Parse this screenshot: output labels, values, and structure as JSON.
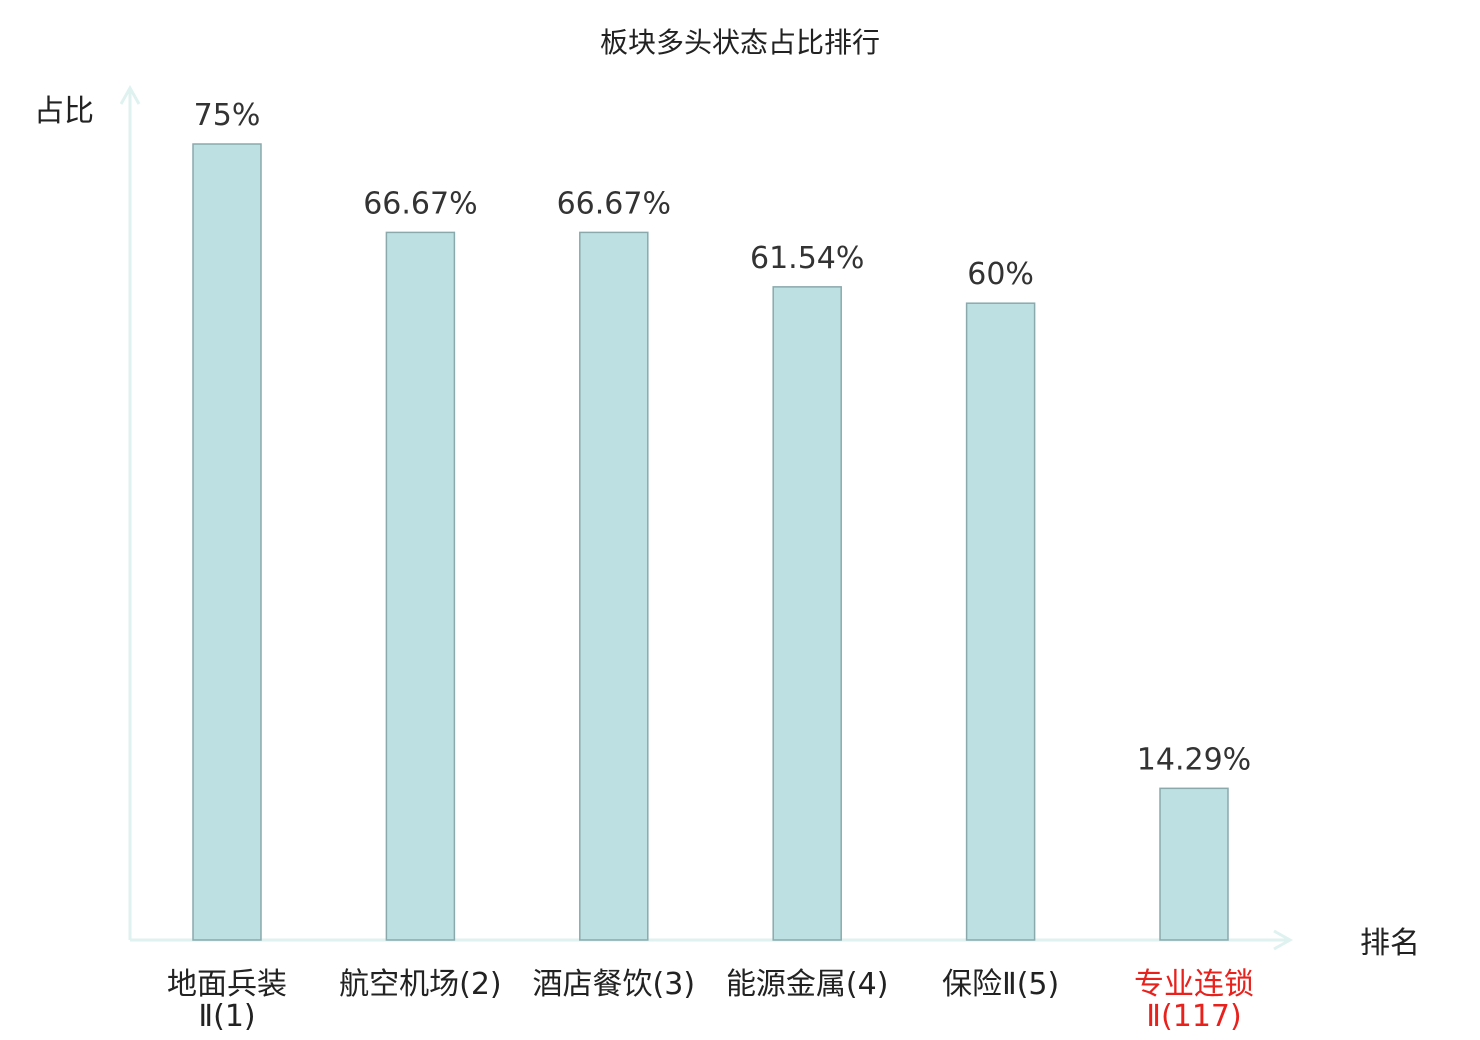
{
  "chart_data": {
    "type": "bar",
    "title": "板块多头状态占比排行",
    "ylabel": "占比",
    "xlabel": "排名",
    "ylim": [
      0,
      80
    ],
    "grid": false,
    "unit": "%",
    "categories": [
      {
        "line1": "地面兵装",
        "line2": "Ⅱ(1)",
        "highlight": false
      },
      {
        "line1": "航空机场(2)",
        "line2": "",
        "highlight": false
      },
      {
        "line1": "酒店餐饮(3)",
        "line2": "",
        "highlight": false
      },
      {
        "line1": "能源金属(4)",
        "line2": "",
        "highlight": false
      },
      {
        "line1": "保险Ⅱ(5)",
        "line2": "",
        "highlight": false
      },
      {
        "line1": "专业连锁",
        "line2": "Ⅱ(117)",
        "highlight": true
      }
    ],
    "values": [
      75,
      66.67,
      66.67,
      61.54,
      60,
      14.29
    ],
    "value_labels": [
      "75%",
      "66.67%",
      "66.67%",
      "61.54%",
      "60%",
      "14.29%"
    ]
  },
  "colors": {
    "bar_fill": "#bde0e3",
    "bar_stroke": "#8aa9ad",
    "axis": "#dff2ef",
    "text": "#222222",
    "value_text": "#333333",
    "highlight": "#e8211c"
  }
}
